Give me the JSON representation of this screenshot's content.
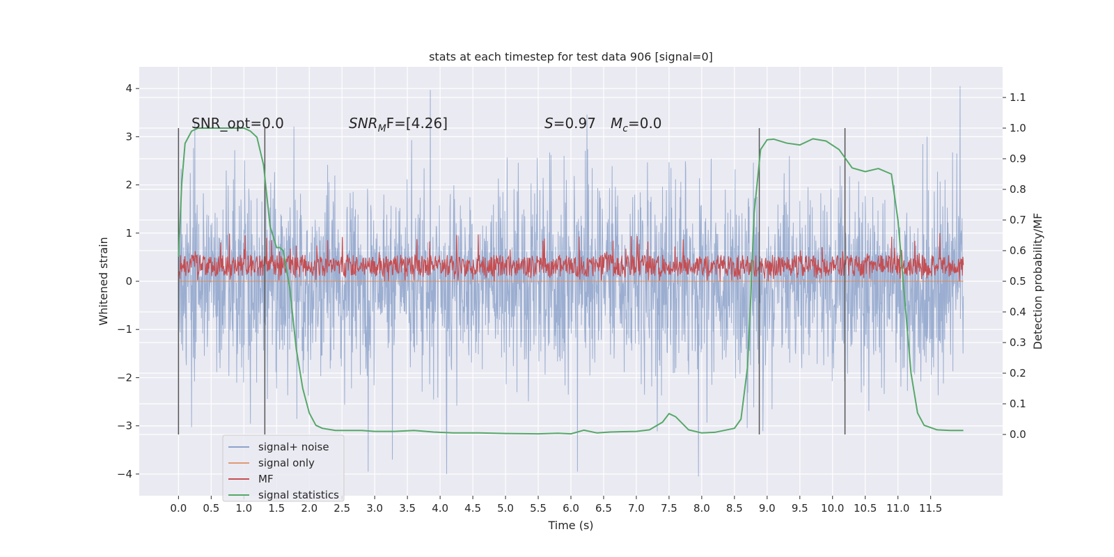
{
  "chart_data": {
    "type": "line",
    "title": "stats at each timestep for test data 906 [signal=0]",
    "xlabel": "Time (s)",
    "ylabel": "Whitened strain",
    "ylabel_right": "Detection probability/MF",
    "xlim": [
      -0.6,
      12.6
    ],
    "ylim": [
      -4.45,
      4.45
    ],
    "ylim_right": [
      -0.2,
      1.2
    ],
    "x_ticks": [
      "0.0",
      "0.5",
      "1.0",
      "1.5",
      "2.0",
      "2.5",
      "3.0",
      "3.5",
      "4.0",
      "4.5",
      "5.0",
      "5.5",
      "6.0",
      "6.5",
      "7.0",
      "7.5",
      "8.0",
      "8.5",
      "9.0",
      "9.5",
      "10.0",
      "10.5",
      "11.0",
      "11.5"
    ],
    "y_ticks": [
      "4",
      "3",
      "2",
      "1",
      "0",
      "−1",
      "−2",
      "−3",
      "−4"
    ],
    "y_ticks_right": [
      "1.1",
      "1.0",
      "0.9",
      "0.8",
      "0.7",
      "0.6",
      "0.5",
      "0.4",
      "0.3",
      "0.2",
      "0.1",
      "0.0"
    ],
    "grid": true,
    "annotations": {
      "snr_opt": "SNR_opt=0.0",
      "snr_mf_sym": "SNR",
      "snr_mf_sub": "M",
      "snr_mf_rest": "F=[4.26]",
      "s_sym": "S",
      "s_val": "=0.97",
      "mc_sym": "M",
      "mc_sub": "c",
      "mc_val": "=0.0"
    },
    "vlines": [
      0.0,
      1.32,
      8.88,
      10.19
    ],
    "series": [
      {
        "name": "signal+ noise",
        "color": "#4c72b0",
        "axis": "left",
        "style": "noise band",
        "x_range": [
          0.0,
          12.0
        ],
        "mean": 0.0,
        "std": 1.0,
        "extremes": [
          [
            0.25,
            3.3
          ],
          [
            3.85,
            3.97
          ],
          [
            11.95,
            4.05
          ],
          [
            2.9,
            -3.95
          ],
          [
            4.1,
            -4.0
          ],
          [
            7.95,
            -4.05
          ],
          [
            6.1,
            -3.95
          ]
        ]
      },
      {
        "name": "signal only",
        "color": "#dd8452",
        "axis": "left",
        "x": [
          0.0,
          12.0
        ],
        "y": [
          0.0,
          0.0
        ]
      },
      {
        "name": "MF",
        "color": "#c44e52",
        "axis": "left",
        "style": "noise band",
        "x_range": [
          0.0,
          12.0
        ],
        "range": [
          0.0,
          1.0
        ],
        "typical": [
          0.1,
          0.55
        ]
      },
      {
        "name": "signal statistics",
        "color": "#55a868",
        "axis": "right",
        "x": [
          0.0,
          0.05,
          0.1,
          0.2,
          0.3,
          0.5,
          1.0,
          1.1,
          1.2,
          1.3,
          1.4,
          1.5,
          1.55,
          1.6,
          1.7,
          1.75,
          1.8,
          1.9,
          2.0,
          2.1,
          2.2,
          2.4,
          2.6,
          2.8,
          3.0,
          3.3,
          3.6,
          3.9,
          4.2,
          4.6,
          5.0,
          5.5,
          5.8,
          6.0,
          6.2,
          6.4,
          6.6,
          7.0,
          7.2,
          7.4,
          7.5,
          7.6,
          7.8,
          8.0,
          8.2,
          8.5,
          8.6,
          8.7,
          8.75,
          8.8,
          8.9,
          9.0,
          9.1,
          9.3,
          9.5,
          9.7,
          9.9,
          10.1,
          10.3,
          10.5,
          10.7,
          10.9,
          11.0,
          11.1,
          11.2,
          11.3,
          11.4,
          11.6,
          11.8,
          12.0
        ],
        "y": [
          0.58,
          0.82,
          0.95,
          0.99,
          1.0,
          1.0,
          1.0,
          0.99,
          0.97,
          0.88,
          0.68,
          0.61,
          0.61,
          0.6,
          0.48,
          0.38,
          0.28,
          0.15,
          0.07,
          0.03,
          0.02,
          0.013,
          0.013,
          0.013,
          0.01,
          0.01,
          0.013,
          0.008,
          0.005,
          0.005,
          0.003,
          0.002,
          0.004,
          0.002,
          0.014,
          0.005,
          0.008,
          0.01,
          0.015,
          0.04,
          0.068,
          0.058,
          0.015,
          0.005,
          0.007,
          0.02,
          0.05,
          0.22,
          0.45,
          0.72,
          0.93,
          0.962,
          0.964,
          0.951,
          0.945,
          0.965,
          0.958,
          0.93,
          0.87,
          0.858,
          0.868,
          0.85,
          0.7,
          0.45,
          0.2,
          0.07,
          0.03,
          0.015,
          0.013,
          0.013
        ]
      }
    ],
    "legend_position": "lower left"
  }
}
